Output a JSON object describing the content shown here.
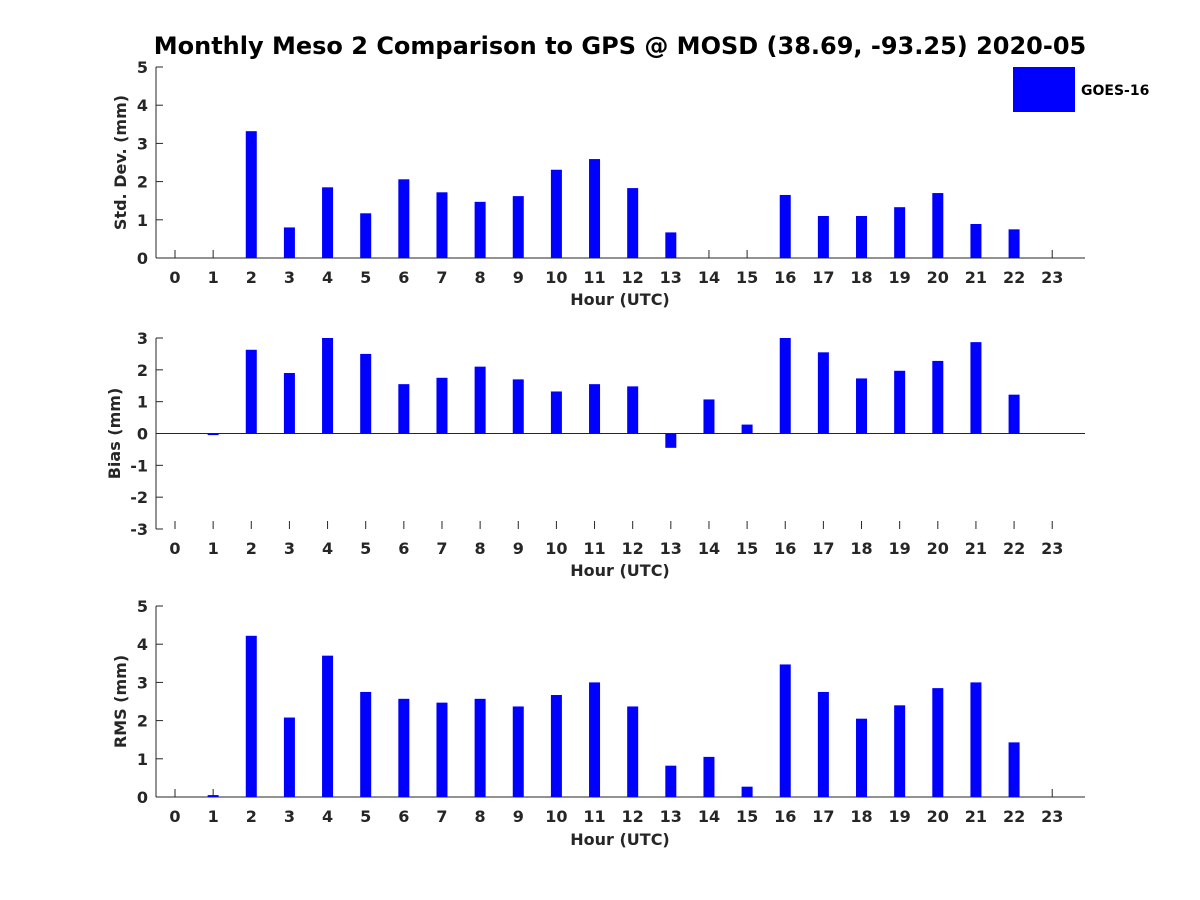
{
  "title": "Monthly Meso 2 Comparison to GPS @ MOSD (38.69, -93.25) 2020-05",
  "legend": {
    "label": "GOES-16",
    "color": "#0000ff",
    "placement": "top-right"
  },
  "chart_data": [
    {
      "type": "bar",
      "title": "Monthly Meso 2 Comparison to GPS @ MOSD (38.69, -93.25) 2020-05",
      "xlabel": "Hour (UTC)",
      "ylabel": "Std. Dev. (mm)",
      "categories": [
        "0",
        "1",
        "2",
        "3",
        "4",
        "5",
        "6",
        "7",
        "8",
        "9",
        "10",
        "11",
        "12",
        "13",
        "14",
        "15",
        "16",
        "17",
        "18",
        "19",
        "20",
        "21",
        "22",
        "23"
      ],
      "ylim": [
        0,
        5
      ],
      "yticks": [
        "0",
        "1",
        "2",
        "3",
        "4",
        "5"
      ],
      "series": [
        {
          "name": "GOES-16",
          "color": "#0000ff",
          "values": [
            0,
            0,
            3.32,
            0.8,
            1.85,
            1.17,
            2.06,
            1.72,
            1.47,
            1.62,
            2.31,
            2.59,
            1.83,
            0.67,
            0,
            0,
            1.65,
            1.1,
            1.1,
            1.33,
            1.7,
            0.89,
            0.75,
            0
          ]
        }
      ]
    },
    {
      "type": "bar",
      "xlabel": "Hour (UTC)",
      "ylabel": "Bias (mm)",
      "categories": [
        "0",
        "1",
        "2",
        "3",
        "4",
        "5",
        "6",
        "7",
        "8",
        "9",
        "10",
        "11",
        "12",
        "13",
        "14",
        "15",
        "16",
        "17",
        "18",
        "19",
        "20",
        "21",
        "22",
        "23"
      ],
      "ylim": [
        -3,
        3
      ],
      "yticks": [
        "-3",
        "-2",
        "-1",
        "0",
        "1",
        "2",
        "3"
      ],
      "series": [
        {
          "name": "GOES-16",
          "color": "#0000ff",
          "values": [
            0,
            -0.05,
            2.63,
            1.9,
            3.0,
            2.5,
            1.55,
            1.75,
            2.1,
            1.7,
            1.32,
            1.55,
            1.48,
            -0.45,
            1.07,
            0.28,
            3.0,
            2.55,
            1.73,
            1.97,
            2.28,
            2.87,
            1.22,
            0
          ]
        }
      ]
    },
    {
      "type": "bar",
      "xlabel": "Hour (UTC)",
      "ylabel": "RMS (mm)",
      "categories": [
        "0",
        "1",
        "2",
        "3",
        "4",
        "5",
        "6",
        "7",
        "8",
        "9",
        "10",
        "11",
        "12",
        "13",
        "14",
        "15",
        "16",
        "17",
        "18",
        "19",
        "20",
        "21",
        "22",
        "23"
      ],
      "ylim": [
        0,
        5
      ],
      "yticks": [
        "0",
        "1",
        "2",
        "3",
        "4",
        "5"
      ],
      "series": [
        {
          "name": "GOES-16",
          "color": "#0000ff",
          "values": [
            0,
            0.05,
            4.22,
            2.08,
            3.7,
            2.75,
            2.57,
            2.47,
            2.57,
            2.37,
            2.67,
            3.0,
            2.37,
            0.82,
            1.05,
            0.27,
            3.47,
            2.75,
            2.05,
            2.4,
            2.85,
            3.0,
            1.43,
            0
          ]
        }
      ]
    }
  ]
}
